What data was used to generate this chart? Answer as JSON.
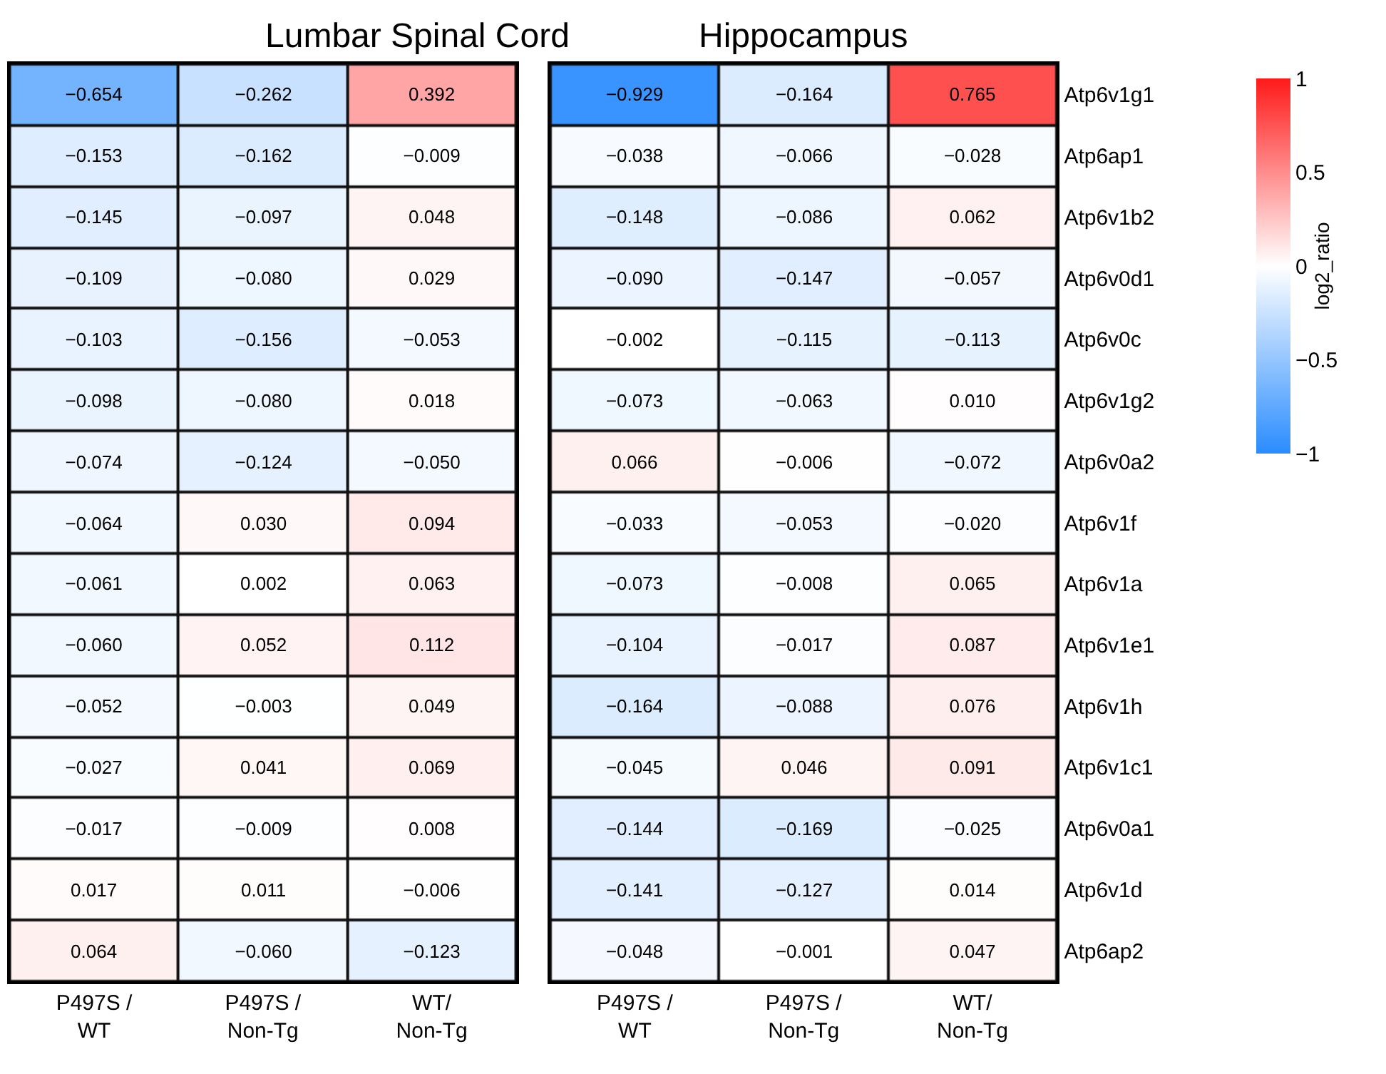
{
  "chart_data": [
    {
      "type": "heatmap",
      "title": "Lumbar Spinal Cord",
      "categories": [
        "P497S /\nWT",
        "P497S /\nNon-Tg",
        "WT/\nNon-Tg"
      ],
      "y_categories": [
        null,
        null,
        null,
        null,
        null,
        null,
        null,
        null,
        null,
        null,
        null,
        null,
        null,
        null,
        null
      ],
      "tick_labels": "x",
      "cells": [
        [
          -0.654,
          -0.262,
          0.392
        ],
        [
          -0.153,
          -0.162,
          -0.009
        ],
        [
          -0.145,
          -0.097,
          0.048
        ],
        [
          -0.109,
          -0.08,
          0.029
        ],
        [
          -0.103,
          -0.156,
          -0.053
        ],
        [
          -0.098,
          -0.08,
          0.018
        ],
        [
          -0.074,
          -0.124,
          -0.05
        ],
        [
          -0.064,
          0.03,
          0.094
        ],
        [
          -0.061,
          0.002,
          0.063
        ],
        [
          -0.06,
          0.052,
          0.112
        ],
        [
          -0.052,
          -0.003,
          0.049
        ],
        [
          -0.027,
          0.041,
          0.069
        ],
        [
          -0.017,
          -0.009,
          0.008
        ],
        [
          0.017,
          0.011,
          -0.006
        ],
        [
          0.064,
          -0.06,
          -0.123
        ]
      ],
      "cell_labels": [
        [
          "−0.654",
          "−0.262",
          "0.392"
        ],
        [
          "−0.153",
          "−0.162",
          "−0.009"
        ],
        [
          "−0.145",
          "−0.097",
          "0.048"
        ],
        [
          "−0.109",
          "−0.080",
          "0.029"
        ],
        [
          "−0.103",
          "−0.156",
          "−0.053"
        ],
        [
          "−0.098",
          "−0.080",
          "0.018"
        ],
        [
          "−0.074",
          "−0.124",
          "−0.050"
        ],
        [
          "−0.064",
          "0.030",
          "0.094"
        ],
        [
          "−0.061",
          "0.002",
          "0.063"
        ],
        [
          "−0.060",
          "0.052",
          "0.112"
        ],
        [
          "−0.052",
          "−0.003",
          "0.049"
        ],
        [
          "−0.027",
          "0.041",
          "0.069"
        ],
        [
          "−0.017",
          "−0.009",
          "0.008"
        ],
        [
          "0.017",
          "0.011",
          "−0.006"
        ],
        [
          "0.064",
          "−0.060",
          "−0.123"
        ]
      ]
    },
    {
      "type": "heatmap",
      "title": "Hippocampus",
      "categories": [
        "P497S /\nWT",
        "P497S /\nNon-Tg",
        "WT/\nNon-Tg"
      ],
      "y_categories": [
        "Atp6v1g1",
        "Atp6ap1",
        "Atp6v1b2",
        "Atp6v0d1",
        "Atp6v0c",
        "Atp6v1g2",
        "Atp6v0a2",
        "Atp6v1f",
        "Atp6v1a",
        "Atp6v1e1",
        "Atp6v1h",
        "Atp6v1c1",
        "Atp6v0a1",
        "Atp6v1d",
        "Atp6ap2"
      ],
      "clim": [
        -1,
        1
      ],
      "cticks": [
        -1,
        -0.5,
        0,
        0.5,
        1
      ],
      "clabel": "log2_ratio",
      "cells": [
        [
          -0.929,
          -0.164,
          0.765
        ],
        [
          -0.038,
          -0.066,
          -0.028
        ],
        [
          -0.148,
          -0.086,
          0.062
        ],
        [
          -0.09,
          -0.147,
          -0.057
        ],
        [
          -0.002,
          -0.115,
          -0.113
        ],
        [
          -0.073,
          -0.063,
          0.01
        ],
        [
          0.066,
          -0.006,
          -0.072
        ],
        [
          -0.033,
          -0.053,
          -0.02
        ],
        [
          -0.073,
          -0.008,
          0.065
        ],
        [
          -0.104,
          -0.017,
          0.087
        ],
        [
          -0.164,
          -0.088,
          0.076
        ],
        [
          -0.045,
          0.046,
          0.091
        ],
        [
          -0.144,
          -0.169,
          -0.025
        ],
        [
          -0.141,
          -0.127,
          0.014
        ],
        [
          -0.048,
          -0.001,
          0.047
        ]
      ],
      "cell_labels": [
        [
          "−0.929",
          "−0.164",
          "0.765"
        ],
        [
          "−0.038",
          "−0.066",
          "−0.028"
        ],
        [
          "−0.148",
          "−0.086",
          "0.062"
        ],
        [
          "−0.090",
          "−0.147",
          "−0.057"
        ],
        [
          "−0.002",
          "−0.115",
          "−0.113"
        ],
        [
          "−0.073",
          "−0.063",
          "0.010"
        ],
        [
          "0.066",
          "−0.006",
          "−0.072"
        ],
        [
          "−0.033",
          "−0.053",
          "−0.020"
        ],
        [
          "−0.073",
          "−0.008",
          "0.065"
        ],
        [
          "−0.104",
          "−0.017",
          "0.087"
        ],
        [
          "−0.164",
          "−0.088",
          "0.076"
        ],
        [
          "−0.045",
          "0.046",
          "0.091"
        ],
        [
          "−0.144",
          "−0.169",
          "−0.025"
        ],
        [
          "−0.141",
          "−0.127",
          "0.014"
        ],
        [
          "−0.048",
          "−0.001",
          "0.047"
        ]
      ]
    }
  ]
}
